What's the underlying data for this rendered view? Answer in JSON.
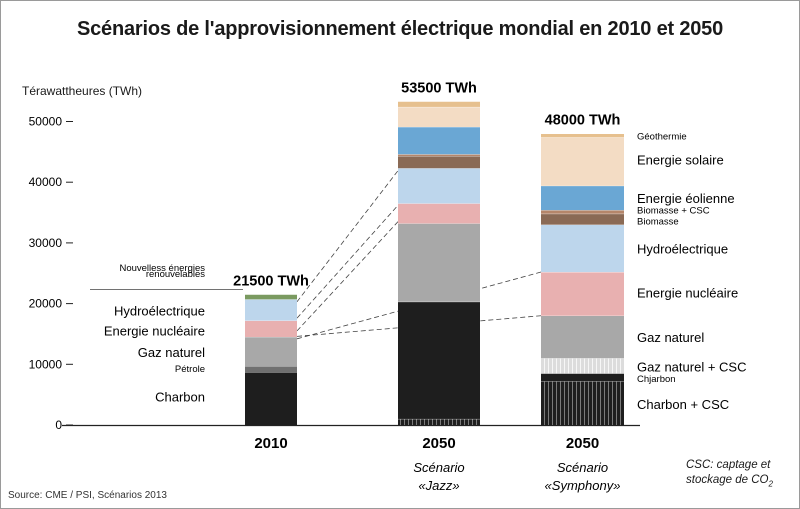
{
  "title": "Scénarios de l'approvisionnement électrique mondial en 2010 et 2050",
  "source": "Source: CME / PSI, Scénarios 2013",
  "note": {
    "line1": "CSC: captage et",
    "line2": "stockage de CO",
    "line2_sub": "2"
  },
  "colors": {
    "coal": "#1e1e1e",
    "oil": "#707070",
    "gas": "#a8a8a8",
    "gas_ccs": "#dcdcdc",
    "nuclear": "#e8b0b0",
    "hydro": "#bdd6ec",
    "biomass": "#8a6a55",
    "biomass_ccs": "#b5866a",
    "wind": "#6aa7d4",
    "solar": "#f3dcc4",
    "geothermal": "#e6c08e",
    "new_renewables": "#7a9a60"
  },
  "chart_data": {
    "type": "bar",
    "stacked": true,
    "ylabel": "Térawattheures (TWh)",
    "ylim": [
      0,
      55000
    ],
    "yticks": [
      "0",
      "10000",
      "20000",
      "30000",
      "40000",
      "50000"
    ],
    "grid": false,
    "categories": [
      "2010",
      "2050",
      "2050"
    ],
    "category_subtitles": [
      [
        "",
        ""
      ],
      [
        "Scénario",
        "«Jazz»"
      ],
      [
        "Scénario",
        "«Symphony»"
      ]
    ],
    "totals": [
      "21500 TWh",
      "53500 TWh",
      "48000 TWh"
    ],
    "bars": [
      {
        "category": "2010",
        "segments": [
          {
            "source": "Charbon",
            "value": 8700,
            "color": "coal"
          },
          {
            "source": "Pétrole",
            "value": 1000,
            "color": "oil"
          },
          {
            "source": "Gaz naturel",
            "value": 4800,
            "color": "gas"
          },
          {
            "source": "Energie nucléaire",
            "value": 2700,
            "color": "nuclear"
          },
          {
            "source": "Hydroélectrique",
            "value": 3500,
            "color": "hydro"
          },
          {
            "source": "Nouvelless énergies renouvelables",
            "value": 800,
            "color": "new_renewables"
          }
        ]
      },
      {
        "category": "2050 Jazz",
        "segments": [
          {
            "source": "Charbon + CSC",
            "value": 1000,
            "color": "coal",
            "hatch": true
          },
          {
            "source": "Charbon",
            "value": 19300,
            "color": "coal"
          },
          {
            "source": "Gaz naturel",
            "value": 12900,
            "color": "gas"
          },
          {
            "source": "Energie nucléaire",
            "value": 3300,
            "color": "nuclear"
          },
          {
            "source": "Hydroélectrique",
            "value": 5800,
            "color": "hydro"
          },
          {
            "source": "Biomasse",
            "value": 2000,
            "color": "biomass"
          },
          {
            "source": "Biomasse + CSC",
            "value": 300,
            "color": "biomass_ccs"
          },
          {
            "source": "Energie éolienne",
            "value": 4500,
            "color": "wind"
          },
          {
            "source": "Energie solaire",
            "value": 3300,
            "color": "solar"
          },
          {
            "source": "Géothermie",
            "value": 900,
            "color": "geothermal"
          }
        ]
      },
      {
        "category": "2050 Symphony",
        "segments": [
          {
            "source": "Charbon + CSC",
            "value": 7200,
            "color": "coal",
            "hatch": true
          },
          {
            "source": "Chjarbon",
            "value": 1300,
            "color": "coal"
          },
          {
            "source": "Gaz naturel + CSC",
            "value": 2500,
            "color": "gas_ccs",
            "hatch": true
          },
          {
            "source": "Gaz naturel",
            "value": 7000,
            "color": "gas"
          },
          {
            "source": "Energie nucléaire",
            "value": 7200,
            "color": "nuclear"
          },
          {
            "source": "Hydroélectrique",
            "value": 7800,
            "color": "hydro"
          },
          {
            "source": "Biomasse",
            "value": 1800,
            "color": "biomass"
          },
          {
            "source": "Biomasse + CSC",
            "value": 600,
            "color": "biomass_ccs"
          },
          {
            "source": "Energie éolienne",
            "value": 4000,
            "color": "wind"
          },
          {
            "source": "Energie solaire",
            "value": 8000,
            "color": "solar"
          },
          {
            "source": "Géothermie",
            "value": 600,
            "color": "geothermal"
          }
        ]
      }
    ],
    "labels_2010": [
      {
        "text": "Charbon",
        "at": 4700
      },
      {
        "text": "Pétrole",
        "at": 9200
      },
      {
        "text": "Gaz naturel",
        "at": 12000
      },
      {
        "text": "Energie nucléaire",
        "at": 15600
      },
      {
        "text": "Hydroélectrique",
        "at": 18900
      },
      {
        "text": "Nouvelless énergies",
        "at": 25900
      },
      {
        "text": "renouvelables",
        "at": 24900
      }
    ],
    "labels_symphony": [
      {
        "text": "Géothermie",
        "at": 47500
      },
      {
        "text": "Energie solaire",
        "at": 43700
      },
      {
        "text": "Energie éolienne",
        "at": 37400
      },
      {
        "text": "Biomasse + CSC",
        "at": 35300
      },
      {
        "text": "Biomasse",
        "at": 33500
      },
      {
        "text": "Hydroélectrique",
        "at": 29100
      },
      {
        "text": "Energie nucléaire",
        "at": 21800
      },
      {
        "text": "Gaz naturel",
        "at": 14500
      },
      {
        "text": "Gaz naturel + CSC",
        "at": 9600
      },
      {
        "text": "Chjarbon",
        "at": 7600
      },
      {
        "text": "Charbon + CSC",
        "at": 3500
      }
    ],
    "connectors": [
      {
        "from_bar": 0,
        "from_value": 20300,
        "to_bar": 1,
        "to_value": 41900
      },
      {
        "from_bar": 0,
        "from_value": 17600,
        "to_bar": 1,
        "to_value": 36200
      },
      {
        "from_bar": 0,
        "from_value": 15500,
        "to_bar": 1,
        "to_value": 33500
      },
      {
        "from_bar": 0,
        "from_value": 14200,
        "to_bar": 2,
        "to_value": 25200
      },
      {
        "from_bar": 0,
        "from_value": 14600,
        "to_bar": 2,
        "to_value": 18000
      }
    ]
  }
}
